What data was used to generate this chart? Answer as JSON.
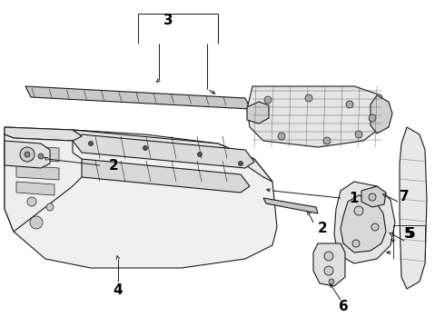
{
  "background_color": "#ffffff",
  "line_color": "#1a1a1a",
  "fig_width": 4.9,
  "fig_height": 3.6,
  "dpi": 100,
  "label_fontsize": 10,
  "label_fontweight": "bold"
}
